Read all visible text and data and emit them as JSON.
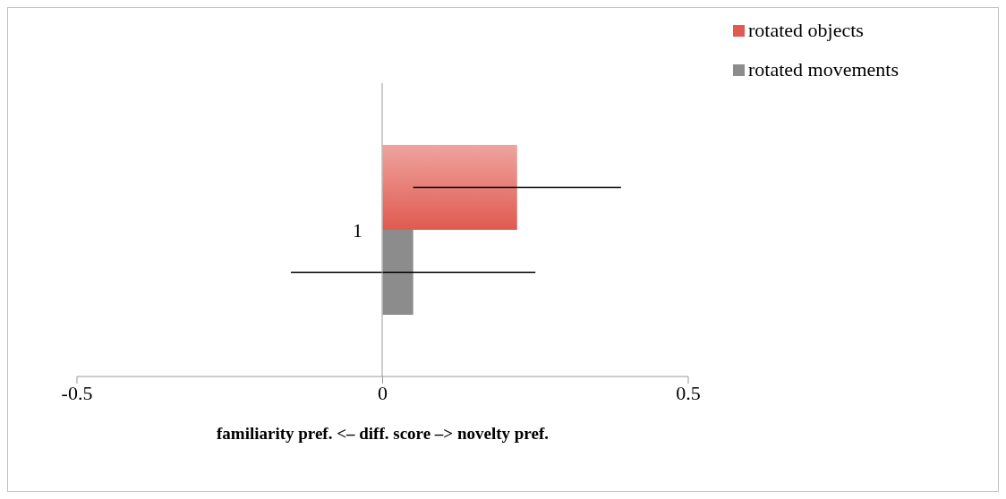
{
  "chart_data": {
    "type": "bar",
    "orientation": "horizontal",
    "categories": [
      "1"
    ],
    "series": [
      {
        "name": "rotated objects",
        "color": "#e05a50",
        "values": [
          0.22
        ],
        "errors": [
          0.17
        ]
      },
      {
        "name": "rotated movements",
        "color": "#8c8c8c",
        "values": [
          0.05
        ],
        "errors": [
          0.2
        ]
      }
    ],
    "xlim": [
      -0.5,
      0.5
    ],
    "xticks": [
      -0.5,
      0,
      0.5
    ],
    "xlabel": "familiarity pref. <–  diff. score  –> novelty pref.",
    "legend": "top right",
    "grid": false
  }
}
